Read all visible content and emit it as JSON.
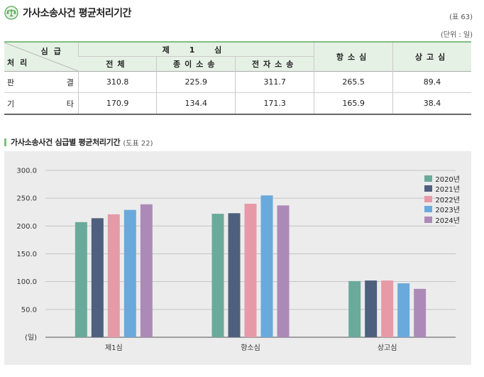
{
  "header": {
    "title": "가사소송사건 평균처리기간",
    "table_number": "(표 63)",
    "unit": "(단위 : 일)"
  },
  "table": {
    "corner_top": "심급",
    "corner_bottom": "처리",
    "group_header": "제 1 심",
    "sub_headers": [
      "전체",
      "종이소송",
      "전자소송"
    ],
    "col_appeal": "항소심",
    "col_supreme": "상고심",
    "rows": [
      {
        "label_left": "판",
        "label_right": "결",
        "values": [
          "310.8",
          "225.9",
          "311.7",
          "265.5",
          "89.4"
        ]
      },
      {
        "label_left": "기",
        "label_right": "타",
        "values": [
          "170.9",
          "134.4",
          "171.3",
          "165.9",
          "38.4"
        ]
      }
    ]
  },
  "chart_section": {
    "title": "가사소송사건 심급별 평균처리기간",
    "figure_number": "(도표 22)"
  },
  "chart_data": {
    "type": "bar",
    "categories": [
      "제1심",
      "항소심",
      "상고심"
    ],
    "series": [
      {
        "name": "2020년",
        "color": "#6aaa9a",
        "values": [
          207,
          222,
          101
        ]
      },
      {
        "name": "2021년",
        "color": "#4f5f7e",
        "values": [
          214,
          223,
          102
        ]
      },
      {
        "name": "2022년",
        "color": "#e69aa8",
        "values": [
          221,
          240,
          102
        ]
      },
      {
        "name": "2023년",
        "color": "#6aa9dc",
        "values": [
          229,
          255,
          97
        ]
      },
      {
        "name": "2024년",
        "color": "#ac8ab8",
        "values": [
          239,
          237,
          87
        ]
      }
    ],
    "ylim": [
      0,
      300
    ],
    "yticks": [
      "300.0",
      "250.0",
      "200.0",
      "150.0",
      "100.0",
      "50.0",
      "(일)"
    ],
    "grid": true,
    "legend": "top-right"
  }
}
